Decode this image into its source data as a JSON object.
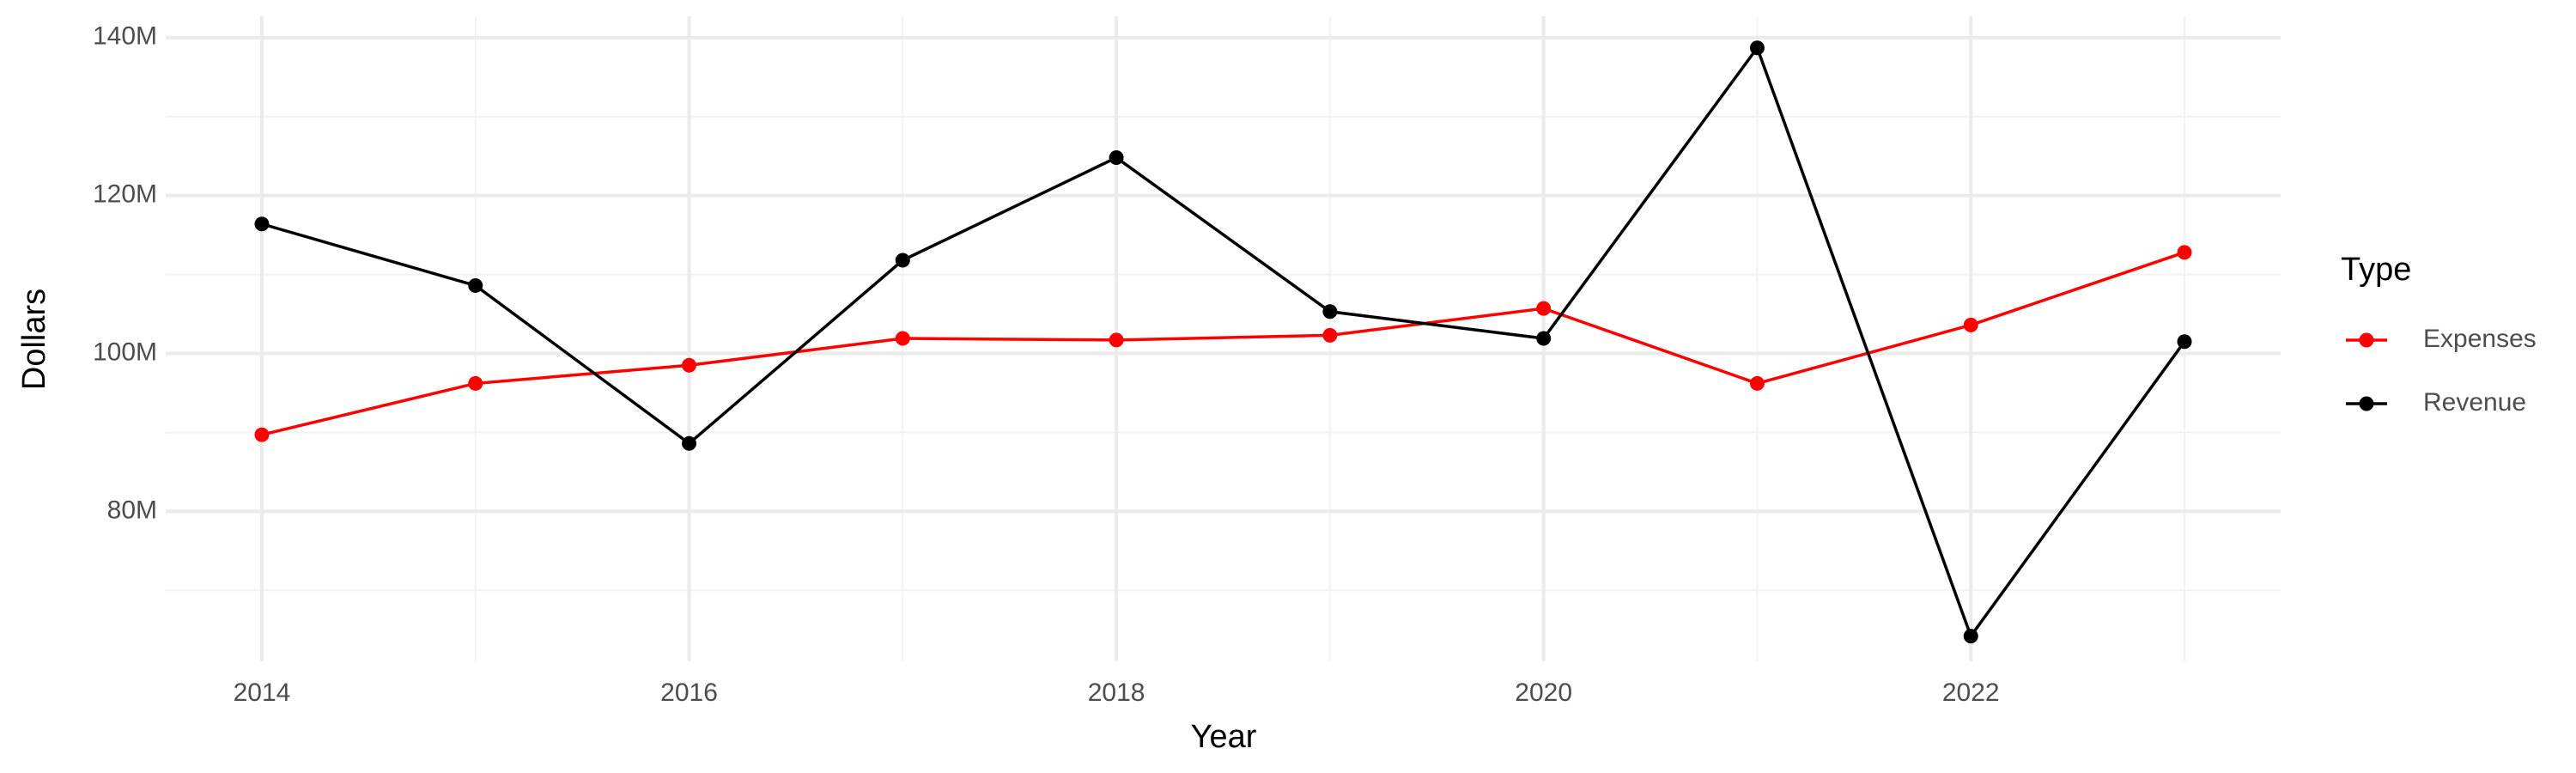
{
  "chart_data": {
    "type": "line",
    "x_label": "Year",
    "y_label": "Dollars",
    "legend_title": "Type",
    "legend_position": "right",
    "grid": true,
    "x": [
      2014,
      2015,
      2016,
      2017,
      2018,
      2019,
      2020,
      2021,
      2022,
      2023
    ],
    "series": [
      {
        "name": "Expenses",
        "color": "#ff0000",
        "values": [
          89700000,
          96200000,
          98500000,
          101900000,
          101700000,
          102300000,
          105700000,
          96200000,
          103600000,
          112800000
        ]
      },
      {
        "name": "Revenue",
        "color": "#000000",
        "values": [
          116400000,
          108600000,
          88600000,
          111800000,
          124800000,
          105300000,
          101900000,
          138700000,
          64200000,
          101500000
        ]
      }
    ],
    "xlim": [
      2013.55,
      2023.45
    ],
    "xticks": [
      2014,
      2016,
      2018,
      2020,
      2022
    ],
    "ylim": [
      61000000,
      142700000
    ],
    "yticks": [
      {
        "value": 80000000,
        "label": "80M"
      },
      {
        "value": 100000000,
        "label": "100M"
      },
      {
        "value": 120000000,
        "label": "120M"
      },
      {
        "value": 140000000,
        "label": "140M"
      }
    ]
  }
}
